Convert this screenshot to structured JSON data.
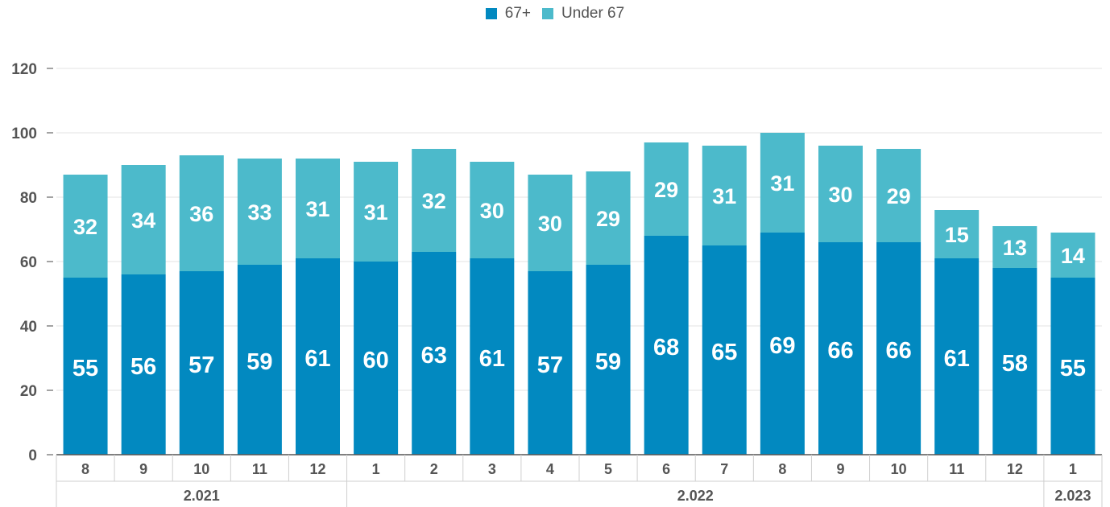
{
  "chart_data": {
    "type": "bar",
    "stacked": true,
    "categories": [
      "8",
      "9",
      "10",
      "11",
      "12",
      "1",
      "2",
      "3",
      "4",
      "5",
      "6",
      "7",
      "8",
      "9",
      "10",
      "11",
      "12",
      "1"
    ],
    "groups": [
      {
        "label": "2.021",
        "span": 5
      },
      {
        "label": "2.022",
        "span": 12
      },
      {
        "label": "2.023",
        "span": 1
      }
    ],
    "series": [
      {
        "name": "67+",
        "color": "#0289c0",
        "values": [
          55,
          56,
          57,
          59,
          61,
          60,
          63,
          61,
          57,
          59,
          68,
          65,
          69,
          66,
          66,
          61,
          58,
          55
        ]
      },
      {
        "name": "Under 67",
        "color": "#4cbacb",
        "values": [
          32,
          34,
          36,
          33,
          31,
          31,
          32,
          30,
          30,
          29,
          29,
          31,
          31,
          30,
          29,
          15,
          13,
          14
        ]
      }
    ],
    "yticks": [
      0,
      20,
      40,
      60,
      80,
      100,
      120
    ],
    "ylim": [
      0,
      120
    ],
    "grid": true,
    "legend_position": "top-center"
  }
}
